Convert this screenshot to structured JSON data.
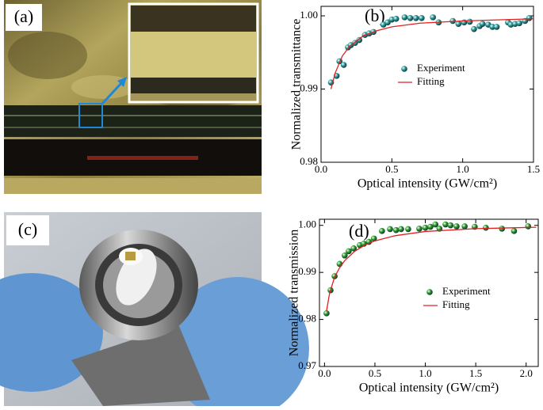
{
  "panels": {
    "a": {
      "label": "(a)"
    },
    "c": {
      "label": "(c)"
    }
  },
  "chart_data": [
    {
      "type": "scatter",
      "label": "(b)",
      "ylabel": "Normalized transmittance",
      "xlabel": "Optical intensity (GW/cm²)",
      "xlim": [
        0,
        1.5
      ],
      "ylim": [
        0.98,
        1.0013
      ],
      "xticks": [
        {
          "value": 0,
          "label": "0.0"
        },
        {
          "value": 0.5,
          "label": "0.5"
        },
        {
          "value": 1,
          "label": "1.0"
        },
        {
          "value": 1.5,
          "label": "1.5"
        }
      ],
      "yticks": [
        0.98,
        0.99,
        {
          "value": 1,
          "label": "1.00"
        }
      ],
      "series": [
        {
          "name": "Experiment",
          "color": "#2a9a9a",
          "style": "marker",
          "x": [
            0.07,
            0.11,
            0.13,
            0.16,
            0.19,
            0.21,
            0.24,
            0.27,
            0.31,
            0.34,
            0.37,
            0.44,
            0.47,
            0.5,
            0.53,
            0.59,
            0.63,
            0.67,
            0.71,
            0.79,
            0.83,
            0.93,
            0.97,
            1.01,
            1.05,
            1.08,
            1.12,
            1.14,
            1.18,
            1.21,
            1.24,
            1.32,
            1.34,
            1.37,
            1.4,
            1.44,
            1.47
          ],
          "values": [
            0.9909,
            0.9918,
            0.9938,
            0.9933,
            0.9957,
            0.996,
            0.9963,
            0.9967,
            0.9974,
            0.9976,
            0.9978,
            0.9988,
            0.9991,
            0.9995,
            0.9996,
            0.9998,
            0.9997,
            0.9997,
            0.9997,
            0.9998,
            0.9991,
            0.9993,
            0.9989,
            0.9991,
            0.9992,
            0.9982,
            0.9986,
            0.9989,
            0.9988,
            0.9985,
            0.9985,
            0.9991,
            0.9988,
            0.9989,
            0.999,
            0.9993,
            0.9997
          ]
        },
        {
          "name": "Fitting",
          "color": "#e02020",
          "style": "line",
          "x": [
            0.07,
            0.1,
            0.15,
            0.2,
            0.3,
            0.4,
            0.5,
            0.7,
            1.0,
            1.5
          ],
          "values": [
            0.99,
            0.9922,
            0.9945,
            0.9958,
            0.9973,
            0.998,
            0.9985,
            0.999,
            0.9993,
            0.9996
          ]
        }
      ]
    },
    {
      "type": "scatter",
      "label": "(d)",
      "ylabel": "Normalized transmission",
      "xlabel": "Optical intensity (GW/cm²)",
      "xlim": [
        -0.05,
        2.12
      ],
      "ylim": [
        0.97,
        1.0013
      ],
      "xticks": [
        {
          "value": 0,
          "label": "0.0"
        },
        {
          "value": 0.5,
          "label": "0.5"
        },
        {
          "value": 1,
          "label": "1.0"
        },
        {
          "value": 1.5,
          "label": "1.5"
        },
        {
          "value": 2,
          "label": "2.0"
        }
      ],
      "yticks": [
        0.97,
        0.98,
        0.99,
        {
          "value": 1,
          "label": "1.00"
        }
      ],
      "series": [
        {
          "name": "Experiment",
          "color": "#2a9a2a",
          "style": "marker",
          "x": [
            0.02,
            0.06,
            0.1,
            0.15,
            0.2,
            0.24,
            0.29,
            0.35,
            0.39,
            0.44,
            0.49,
            0.57,
            0.65,
            0.71,
            0.76,
            0.83,
            0.94,
            1.0,
            1.05,
            1.1,
            1.14,
            1.2,
            1.25,
            1.31,
            1.39,
            1.49,
            1.6,
            1.76,
            1.88,
            2.02
          ],
          "values": [
            0.9813,
            0.9862,
            0.9892,
            0.9918,
            0.9936,
            0.9945,
            0.9951,
            0.9958,
            0.9961,
            0.9965,
            0.9972,
            0.9988,
            0.9992,
            0.999,
            0.9992,
            0.9992,
            0.9993,
            0.9995,
            0.9997,
            1.0002,
            0.9993,
            1.0002,
            1.0,
            0.9998,
            0.9998,
            0.9997,
            0.9995,
            0.9993,
            0.9988,
            0.9998
          ]
        },
        {
          "name": "Fitting",
          "color": "#e02020",
          "style": "line",
          "x": [
            0.02,
            0.05,
            0.1,
            0.15,
            0.2,
            0.3,
            0.4,
            0.5,
            0.7,
            1.0,
            1.5,
            2.1
          ],
          "values": [
            0.9818,
            0.9855,
            0.989,
            0.991,
            0.9925,
            0.9945,
            0.9958,
            0.9967,
            0.9978,
            0.9987,
            0.9993,
            0.9996
          ]
        }
      ]
    }
  ]
}
